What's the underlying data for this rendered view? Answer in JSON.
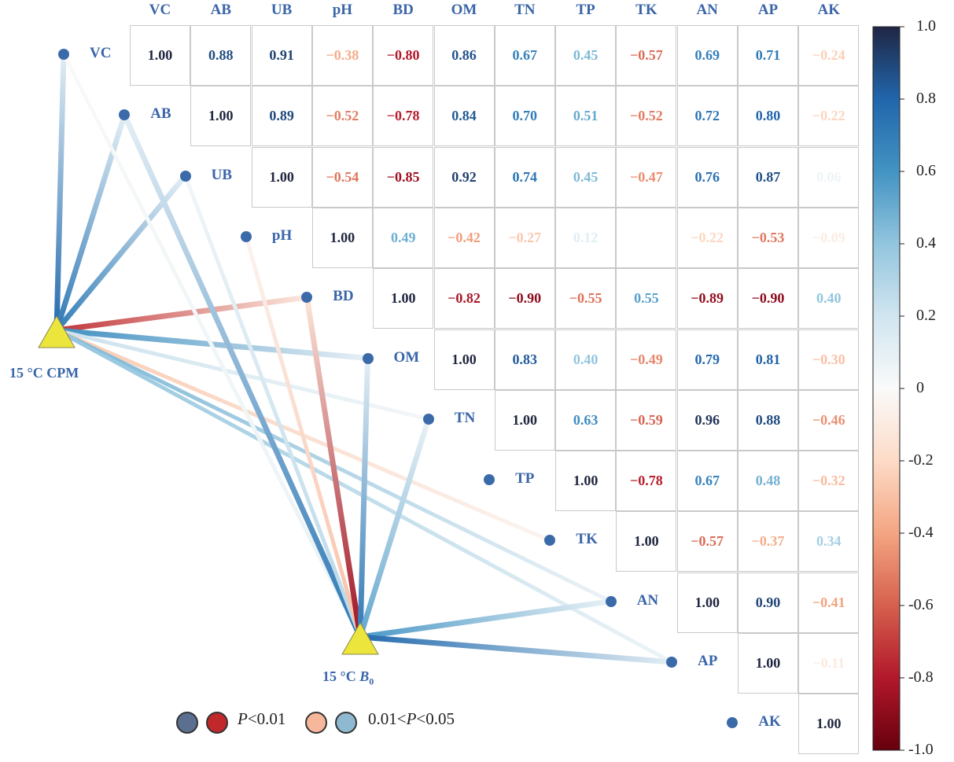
{
  "chart_data": {
    "type": "heatmap",
    "variables": [
      "VC",
      "AB",
      "UB",
      "pH",
      "BD",
      "OM",
      "TN",
      "TP",
      "TK",
      "AN",
      "AP",
      "AK"
    ],
    "matrix": [
      [
        "1.00",
        "0.88",
        "0.91",
        "−0.38",
        "−0.80",
        "0.86",
        "0.67",
        "0.45",
        "−0.57",
        "0.69",
        "0.71",
        "−0.24"
      ],
      [
        null,
        "1.00",
        "0.89",
        "−0.52",
        "−0.78",
        "0.84",
        "0.70",
        "0.51",
        "−0.52",
        "0.72",
        "0.80",
        "−0.22"
      ],
      [
        null,
        null,
        "1.00",
        "−0.54",
        "−0.85",
        "0.92",
        "0.74",
        "0.45",
        "−0.47",
        "0.76",
        "0.87",
        "0.06"
      ],
      [
        null,
        null,
        null,
        "1.00",
        "0.49",
        "−0.42",
        "−0.27",
        "0.12",
        "",
        "−0.22",
        "−0.53",
        "−0.09"
      ],
      [
        null,
        null,
        null,
        null,
        "1.00",
        "−0.82",
        "−0.90",
        "−0.55",
        "0.55",
        "−0.89",
        "−0.90",
        "0.40"
      ],
      [
        null,
        null,
        null,
        null,
        null,
        "1.00",
        "0.83",
        "0.40",
        "−0.49",
        "0.79",
        "0.81",
        "−0.30"
      ],
      [
        null,
        null,
        null,
        null,
        null,
        null,
        "1.00",
        "0.63",
        "−0.59",
        "0.96",
        "0.88",
        "−0.46"
      ],
      [
        null,
        null,
        null,
        null,
        null,
        null,
        null,
        "1.00",
        "−0.78",
        "0.67",
        "0.48",
        "−0.32"
      ],
      [
        null,
        null,
        null,
        null,
        null,
        null,
        null,
        null,
        "1.00",
        "−0.57",
        "−0.37",
        "0.34"
      ],
      [
        null,
        null,
        null,
        null,
        null,
        null,
        null,
        null,
        null,
        "1.00",
        "0.90",
        "−0.41"
      ],
      [
        null,
        null,
        null,
        null,
        null,
        null,
        null,
        null,
        null,
        null,
        "1.00",
        "−0.11"
      ],
      [
        null,
        null,
        null,
        null,
        null,
        null,
        null,
        null,
        null,
        null,
        null,
        "1.00"
      ]
    ],
    "colorbar": {
      "range": [
        -1.0,
        1.0
      ],
      "ticks": [
        "1.0",
        "0.8",
        "0.6",
        "0.4",
        "0.2",
        "0",
        "-0.2",
        "-0.4",
        "-0.6",
        "-0.8",
        "-1.0"
      ]
    },
    "nodes": [
      {
        "label": "15 °C  CPM"
      },
      {
        "label": "15 °C",
        "label_italic": "B",
        "label_sub": "0"
      }
    ],
    "links": [
      {
        "from": 0,
        "to": "VC",
        "r": 0.78
      },
      {
        "from": 0,
        "to": "AB",
        "r": 0.72
      },
      {
        "from": 0,
        "to": "UB",
        "r": 0.7
      },
      {
        "from": 0,
        "to": "BD",
        "r": -0.72
      },
      {
        "from": 0,
        "to": "OM",
        "r": 0.62
      },
      {
        "from": 0,
        "to": "TN",
        "r": 0.22
      },
      {
        "from": 0,
        "to": "TK",
        "r": -0.26
      },
      {
        "from": 0,
        "to": "AN",
        "r": 0.46
      },
      {
        "from": 0,
        "to": "AP",
        "r": 0.4
      },
      {
        "from": 1,
        "to": "VC",
        "r": 0.08
      },
      {
        "from": 1,
        "to": "AB",
        "r": 0.72
      },
      {
        "from": 1,
        "to": "UB",
        "r": 0.28
      },
      {
        "from": 1,
        "to": "pH",
        "r": -0.3
      },
      {
        "from": 1,
        "to": "BD",
        "r": -0.85
      },
      {
        "from": 1,
        "to": "OM",
        "r": 0.72
      },
      {
        "from": 1,
        "to": "TN",
        "r": 0.52
      },
      {
        "from": 1,
        "to": "AN",
        "r": 0.58
      },
      {
        "from": 1,
        "to": "AP",
        "r": 0.78
      }
    ],
    "legend": {
      "label1_italic": "P",
      "label1_rest": "<0.01",
      "label2_prefix": "0.01<",
      "label2_italic": "P",
      "label2_rest": "<0.05",
      "colors": [
        "#5b7090",
        "#c0282b",
        "#f7b79b",
        "#8fb9d0"
      ]
    }
  }
}
